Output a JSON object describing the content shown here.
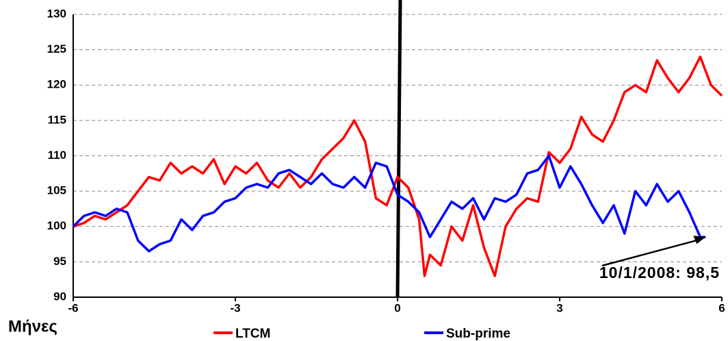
{
  "chart_data": {
    "type": "line",
    "x_label": "Μήνες",
    "annotation": "10/1/2008: 98,5",
    "xlim": [
      -6,
      6
    ],
    "xticks": [
      -6,
      -3,
      0,
      3,
      6
    ],
    "ylim": [
      90,
      130
    ],
    "yticks": [
      90,
      95,
      100,
      105,
      110,
      115,
      120,
      125,
      130
    ],
    "grid": true,
    "legend": "bottom",
    "series": [
      {
        "name": "LTCM",
        "color": "#ff0000",
        "x": [
          -6,
          -5.8,
          -5.6,
          -5.4,
          -5.2,
          -5,
          -4.8,
          -4.6,
          -4.4,
          -4.2,
          -4,
          -3.8,
          -3.6,
          -3.4,
          -3.2,
          -3,
          -2.8,
          -2.6,
          -2.4,
          -2.2,
          -2,
          -1.8,
          -1.6,
          -1.4,
          -1.2,
          -1,
          -0.8,
          -0.6,
          -0.4,
          -0.2,
          0,
          0.2,
          0.4,
          0.5,
          0.6,
          0.8,
          1,
          1.2,
          1.4,
          1.6,
          1.8,
          2,
          2.2,
          2.4,
          2.6,
          2.8,
          3,
          3.2,
          3.4,
          3.6,
          3.8,
          4,
          4.2,
          4.4,
          4.6,
          4.8,
          5,
          5.2,
          5.4,
          5.6,
          5.8,
          6
        ],
        "values": [
          100,
          100.5,
          101.5,
          101,
          102,
          103,
          105,
          107,
          106.5,
          109,
          107.5,
          108.5,
          107.5,
          109.5,
          106,
          108.5,
          107.5,
          109,
          106.5,
          105.5,
          107.5,
          105.5,
          107,
          109.5,
          111,
          112.5,
          115,
          112,
          104,
          103,
          107,
          105.5,
          101,
          93,
          96,
          94.5,
          100,
          98,
          103,
          97,
          93,
          100,
          102.5,
          104,
          103.5,
          110.5,
          109,
          111,
          115.5,
          113,
          112,
          115,
          119,
          120,
          119,
          123.5,
          121,
          119,
          121,
          124,
          120,
          118.5
        ]
      },
      {
        "name": "Sub-prime",
        "color": "#0000ff",
        "x": [
          -6,
          -5.8,
          -5.6,
          -5.4,
          -5.2,
          -5,
          -4.8,
          -4.6,
          -4.4,
          -4.2,
          -4,
          -3.8,
          -3.6,
          -3.4,
          -3.2,
          -3,
          -2.8,
          -2.6,
          -2.4,
          -2.2,
          -2,
          -1.8,
          -1.6,
          -1.4,
          -1.2,
          -1,
          -0.8,
          -0.6,
          -0.4,
          -0.2,
          0,
          0.2,
          0.4,
          0.6,
          0.8,
          1,
          1.2,
          1.4,
          1.6,
          1.8,
          2,
          2.2,
          2.4,
          2.6,
          2.8,
          3,
          3.2,
          3.4,
          3.6,
          3.8,
          4,
          4.2,
          4.4,
          4.6,
          4.8,
          5,
          5.2,
          5.4,
          5.6,
          5.7
        ],
        "values": [
          100,
          101.5,
          102,
          101.5,
          102.5,
          102,
          98,
          96.5,
          97.5,
          98,
          101,
          99.5,
          101.5,
          102,
          103.5,
          104,
          105.5,
          106,
          105.5,
          107.5,
          108,
          107,
          106,
          107.5,
          106,
          105.5,
          107,
          105.5,
          109,
          108.5,
          104.5,
          103.5,
          102,
          98.5,
          101,
          103.5,
          102.5,
          104,
          101,
          104,
          103.5,
          104.5,
          107.5,
          108,
          110,
          105.5,
          108.5,
          106,
          103,
          100.5,
          103,
          99,
          105,
          103,
          106,
          103.5,
          105,
          102,
          98.5,
          98.5
        ]
      }
    ]
  }
}
